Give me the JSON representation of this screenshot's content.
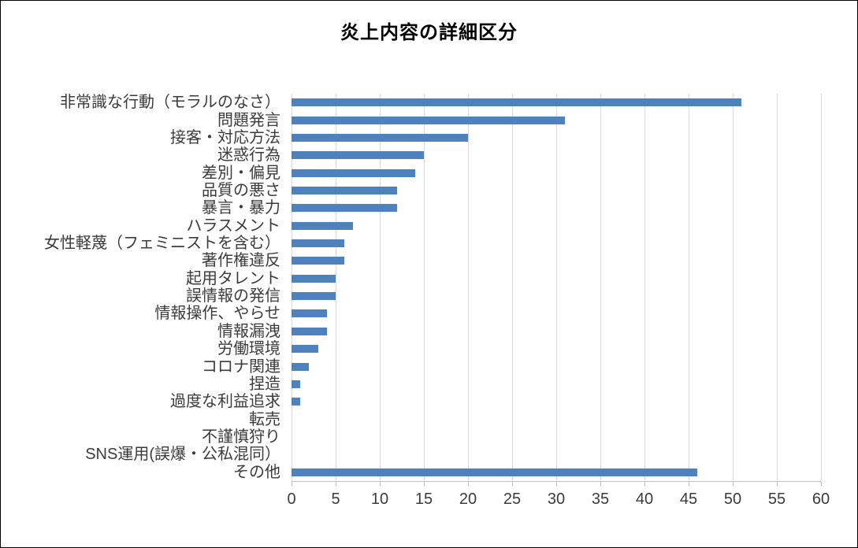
{
  "chart_data": {
    "type": "bar",
    "orientation": "horizontal",
    "title": "炎上内容の詳細区分",
    "categories": [
      "非常識な行動（モラルのなさ）",
      "問題発言",
      "接客・対応方法",
      "迷惑行為",
      "差別・偏見",
      "品質の悪さ",
      "暴言・暴力",
      "ハラスメント",
      "女性軽蔑（フェミニストを含む）",
      "著作権違反",
      "起用タレント",
      "誤情報の発信",
      "情報操作、やらせ",
      "情報漏洩",
      "労働環境",
      "コロナ関連",
      "捏造",
      "過度な利益追求",
      "転売",
      "不謹慎狩り",
      "SNS運用(誤爆・公私混同）",
      "その他"
    ],
    "values": [
      51,
      31,
      20,
      15,
      14,
      12,
      12,
      7,
      6,
      6,
      5,
      5,
      4,
      4,
      3,
      2,
      1,
      1,
      0,
      0,
      0,
      46
    ],
    "xlabel": "",
    "ylabel": "",
    "xlim": [
      0,
      60
    ],
    "xticks": [
      0,
      5,
      10,
      15,
      20,
      25,
      30,
      35,
      40,
      45,
      50,
      55,
      60
    ],
    "grid": "vertical-on",
    "legend": "none",
    "colors": {
      "bar": "#4f81bd",
      "gridline": "#d9d9d9",
      "axis_line": "#bfbfbf",
      "text": "#3b3b3b",
      "title": "#000000",
      "frame_border": "#000000",
      "background": "#ffffff"
    }
  }
}
